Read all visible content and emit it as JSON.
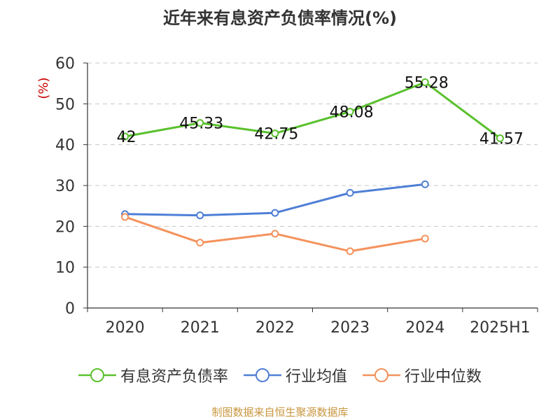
{
  "title": "近年来有息资产负债率情况(%)",
  "source": "制图数据来自恒生聚源数据库",
  "colors": {
    "series_debt": "#5ac12e",
    "series_avg": "#4f7fd6",
    "series_median": "#f4925c",
    "ylabel": "#cc0000",
    "grid": "#c8c8c8",
    "axis": "#333333",
    "source": "#c8963e"
  },
  "legend": [
    {
      "label": "有息资产负债率",
      "color": "#5ac12e"
    },
    {
      "label": "行业均值",
      "color": "#4f7fd6"
    },
    {
      "label": "行业中位数",
      "color": "#f4925c"
    }
  ],
  "chart_data": {
    "type": "line",
    "title": "近年来有息资产负债率情况(%)",
    "ylabel": "(%)",
    "xlabel": "",
    "categories": [
      "2020",
      "2021",
      "2022",
      "2023",
      "2024",
      "2025H1"
    ],
    "ylim": [
      0,
      60
    ],
    "yticks": [
      0,
      10,
      20,
      30,
      40,
      50,
      60
    ],
    "grid": true,
    "legend_position": "bottom",
    "series": [
      {
        "name": "有息资产负债率",
        "values": [
          42,
          45.33,
          42.75,
          48.08,
          55.28,
          41.57
        ],
        "labels": [
          "42",
          "45.33",
          "42.75",
          "48.08",
          "55.28",
          "41.57"
        ]
      },
      {
        "name": "行业均值",
        "values": [
          23.0,
          22.7,
          23.3,
          28.2,
          30.3,
          null
        ]
      },
      {
        "name": "行业中位数",
        "values": [
          22.3,
          16.0,
          18.2,
          13.9,
          17.0,
          null
        ]
      }
    ]
  }
}
